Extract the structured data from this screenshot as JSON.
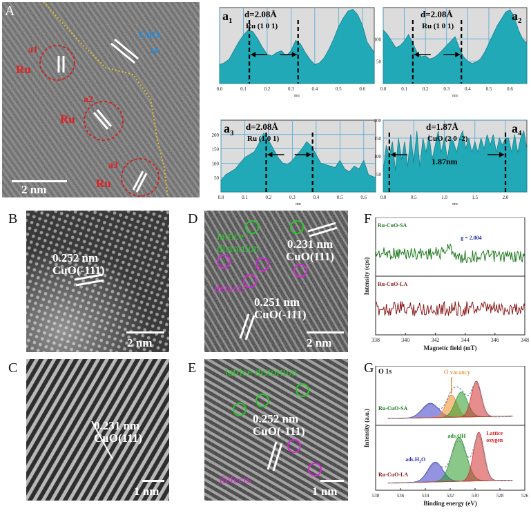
{
  "panels": {
    "A": {
      "letter": "A",
      "ru_labels": [
        "Ru",
        "Ru",
        "Ru"
      ],
      "sub_labels": [
        "a1",
        "a2",
        "a3"
      ],
      "cuo_label": "CuO",
      "a4_label": "a4",
      "scale": "2 nm"
    },
    "B": {
      "letter": "B",
      "d": "0.252 nm",
      "plane": "CuO(-111)",
      "scale": "2 nm"
    },
    "C": {
      "letter": "C",
      "d": "0.231 nm",
      "plane": "CuO(111)",
      "scale": "1 nm"
    },
    "D": {
      "letter": "D",
      "lattice": "lattice",
      "distortion": "distortion",
      "d1": "0.231 nm",
      "plane1": "CuO(111)",
      "defects": "defects",
      "d2": "0.251 nm",
      "plane2": "CuO(-111)",
      "scale": "2 nm"
    },
    "E": {
      "letter": "E",
      "distortion": "lattice distortion",
      "d": "0.252 nm",
      "plane": "CuO(-111)",
      "defects": "defects",
      "scale": "1 nm"
    },
    "F": {
      "letter": "F"
    },
    "G": {
      "letter": "G"
    }
  },
  "chart_data": [
    {
      "id": "a1",
      "type": "area",
      "label_main": "a",
      "label_sub": "1",
      "d_label": "d=2.08Å",
      "plane_label": "Ru (1 0 1)",
      "xlabel": "nm",
      "xlim": [
        0,
        0.65
      ],
      "ylim": [
        0,
        220
      ],
      "xticks": [
        "0.0",
        "0.1",
        "0.2",
        "0.3",
        "0.4",
        "0.5",
        "0.6"
      ],
      "yticks": [],
      "markers": [
        0.125,
        0.33
      ],
      "x": [
        0.0,
        0.02,
        0.04,
        0.06,
        0.08,
        0.1,
        0.12,
        0.14,
        0.16,
        0.18,
        0.2,
        0.22,
        0.24,
        0.26,
        0.28,
        0.3,
        0.32,
        0.34,
        0.36,
        0.38,
        0.4,
        0.42,
        0.44,
        0.46,
        0.48,
        0.5,
        0.52,
        0.54,
        0.56,
        0.58,
        0.6,
        0.62,
        0.65
      ],
      "y": [
        55,
        60,
        70,
        95,
        120,
        140,
        155,
        150,
        130,
        105,
        85,
        80,
        90,
        95,
        80,
        95,
        125,
        115,
        90,
        70,
        55,
        60,
        75,
        100,
        130,
        165,
        190,
        210,
        215,
        200,
        170,
        120,
        90
      ]
    },
    {
      "id": "a2",
      "type": "area",
      "label_main": "a",
      "label_sub": "2",
      "d_label": "d=2.08Å",
      "plane_label": "Ru (1 0 1)",
      "xlabel": "nm",
      "xlim": [
        0,
        0.68
      ],
      "ylim": [
        0,
        170
      ],
      "xticks": [
        "0.0",
        "0.1",
        "0.2",
        "0.3",
        "0.4",
        "0.5",
        "0.6"
      ],
      "yticks": [
        "50",
        "100"
      ],
      "markers": [
        0.14,
        0.37
      ],
      "x": [
        0.0,
        0.02,
        0.04,
        0.06,
        0.08,
        0.1,
        0.12,
        0.14,
        0.16,
        0.18,
        0.2,
        0.22,
        0.24,
        0.26,
        0.28,
        0.3,
        0.32,
        0.34,
        0.36,
        0.38,
        0.4,
        0.42,
        0.44,
        0.46,
        0.48,
        0.5,
        0.52,
        0.54,
        0.56,
        0.58,
        0.6,
        0.62,
        0.64,
        0.66,
        0.68
      ],
      "y": [
        120,
        110,
        95,
        80,
        85,
        95,
        110,
        90,
        70,
        60,
        62,
        55,
        58,
        65,
        75,
        85,
        95,
        105,
        80,
        60,
        50,
        45,
        48,
        55,
        70,
        90,
        110,
        130,
        145,
        160,
        165,
        150,
        120,
        100,
        90
      ]
    },
    {
      "id": "a3",
      "type": "area",
      "label_main": "a",
      "label_sub": "3",
      "d_label": "d=2.08Å",
      "plane_label": "Ru (1 0 1)",
      "xlabel": "nm",
      "xlim": [
        0,
        0.65
      ],
      "ylim": [
        0,
        250
      ],
      "xticks": [
        "0.0",
        "0.1",
        "0.2",
        "0.3",
        "0.4",
        "0.5",
        "0.6"
      ],
      "yticks": [
        "50",
        "100",
        "150",
        "200"
      ],
      "markers": [
        0.19,
        0.385
      ],
      "x": [
        0.0,
        0.02,
        0.04,
        0.06,
        0.08,
        0.1,
        0.12,
        0.14,
        0.16,
        0.18,
        0.2,
        0.22,
        0.24,
        0.26,
        0.28,
        0.3,
        0.32,
        0.34,
        0.36,
        0.38,
        0.4,
        0.42,
        0.44,
        0.46,
        0.48,
        0.5,
        0.52,
        0.54,
        0.56,
        0.58,
        0.6,
        0.62,
        0.65
      ],
      "y": [
        40,
        60,
        70,
        80,
        100,
        120,
        130,
        140,
        170,
        205,
        180,
        150,
        120,
        100,
        95,
        110,
        130,
        150,
        175,
        160,
        130,
        100,
        95,
        90,
        85,
        110,
        80,
        70,
        90,
        80,
        110,
        60,
        50
      ]
    },
    {
      "id": "a4",
      "type": "area",
      "label_main": "a",
      "label_sub": "4",
      "d_label": "d=1.87Å",
      "plane_label": "CuO (2 0 -2)",
      "dist_label": "1.87nm",
      "xlabel": "nm",
      "xlim": [
        0,
        2.35
      ],
      "ylim": [
        0,
        200
      ],
      "xticks": [
        "0.0",
        "0.5",
        "1.0",
        "1.5",
        "2.0"
      ],
      "yticks": [
        "50",
        "100",
        "150",
        "200"
      ],
      "markers": [
        0.1,
        2.0
      ],
      "x": [
        0.0,
        0.05,
        0.1,
        0.15,
        0.2,
        0.25,
        0.3,
        0.35,
        0.4,
        0.45,
        0.5,
        0.55,
        0.6,
        0.65,
        0.7,
        0.75,
        0.8,
        0.85,
        0.9,
        0.95,
        1.0,
        1.05,
        1.1,
        1.15,
        1.2,
        1.25,
        1.3,
        1.35,
        1.4,
        1.45,
        1.5,
        1.55,
        1.6,
        1.65,
        1.7,
        1.75,
        1.8,
        1.85,
        1.9,
        1.95,
        2.0,
        2.05,
        2.1,
        2.15,
        2.2,
        2.25,
        2.3,
        2.35
      ],
      "y": [
        60,
        130,
        100,
        140,
        60,
        150,
        90,
        140,
        70,
        160,
        80,
        170,
        70,
        150,
        110,
        160,
        90,
        130,
        170,
        110,
        150,
        90,
        150,
        140,
        110,
        150,
        170,
        120,
        150,
        110,
        140,
        110,
        150,
        120,
        160,
        130,
        160,
        110,
        150,
        130,
        150,
        150,
        110,
        160,
        110,
        150,
        170,
        120
      ]
    },
    {
      "id": "F",
      "type": "line",
      "series": [
        {
          "name": "Ru-CuO-SA",
          "color": "#1f7a1f"
        },
        {
          "name": "Ru-CuO-LA",
          "color": "#8b1a1a"
        }
      ],
      "annotation": "g = 2.004",
      "xlabel": "Magnetic field (mT)",
      "ylabel": "Intensity (cps)",
      "xlim": [
        338,
        348
      ],
      "xticks": [
        "338",
        "340",
        "342",
        "344",
        "346",
        "348"
      ]
    },
    {
      "id": "G",
      "type": "area",
      "title": "O 1s",
      "panels": [
        {
          "name": "Ru-CuO-SA",
          "peaks": [
            {
              "center": 533.6,
              "height": 0.3,
              "width": 0.65,
              "color": "#3b3bc8"
            },
            {
              "center": 531.9,
              "height": 0.46,
              "width": 0.45,
              "color": "#f08a2a"
            },
            {
              "center": 531.1,
              "height": 0.52,
              "width": 0.5,
              "color": "#2a9a2a"
            },
            {
              "center": 529.9,
              "height": 0.74,
              "width": 0.4,
              "color": "#d23030"
            }
          ]
        },
        {
          "name": "Ru-CuO-LA",
          "peaks": [
            {
              "center": 533.2,
              "height": 0.35,
              "width": 0.6,
              "color": "#3b3bc8"
            },
            {
              "center": 531.3,
              "height": 0.78,
              "width": 0.6,
              "color": "#2a9a2a"
            },
            {
              "center": 529.7,
              "height": 0.86,
              "width": 0.42,
              "color": "#d23030"
            }
          ]
        }
      ],
      "labels": {
        "vacancy": "O vacancy",
        "oh": "ads.OH",
        "h2o": "ads.H2O",
        "h2o_main": "ads.H",
        "h2o_sub": "2",
        "h2o_end": "O",
        "lattice1": "Lattice",
        "lattice2": "oxygen"
      },
      "xlabel": "Binding energy (eV)",
      "ylabel": "Intensity (a.u.)",
      "xlim": [
        538,
        526
      ],
      "xticks": [
        "538",
        "536",
        "534",
        "532",
        "530",
        "528",
        "526"
      ]
    }
  ]
}
